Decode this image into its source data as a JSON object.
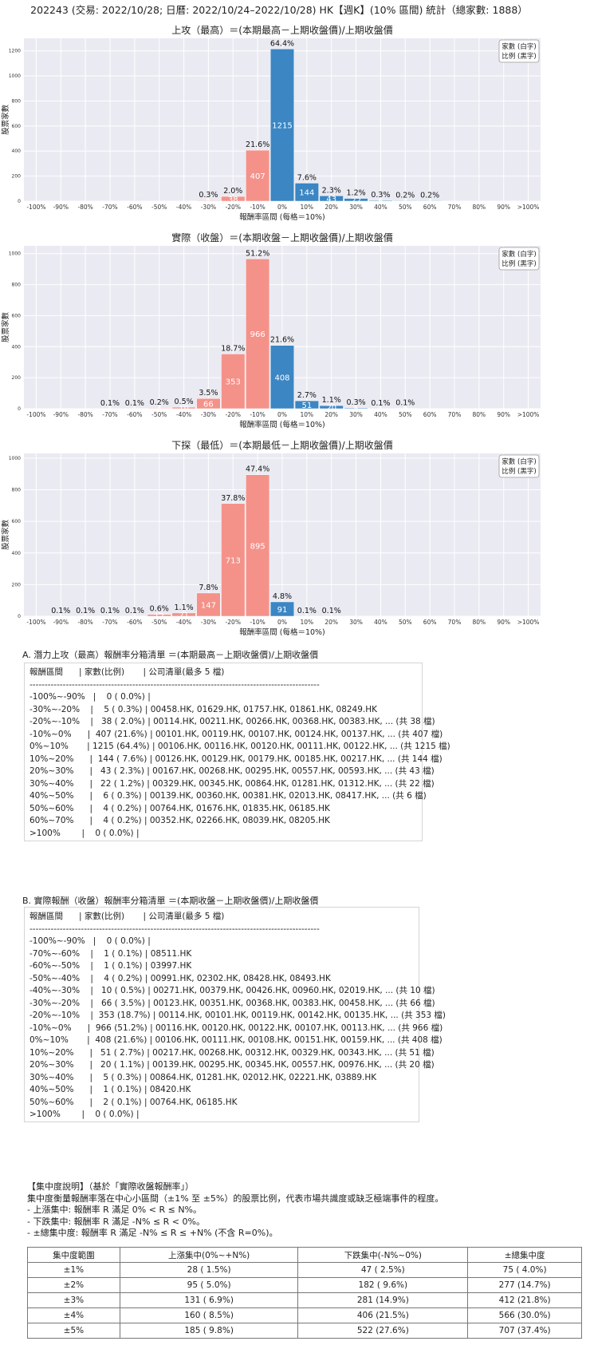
{
  "page_title": "202243 (交易: 2022/10/28; 日曆: 2022/10/24–2022/10/28) HK【週K】(10% 區間) 統計（總家數: 1888）",
  "chart_legend": [
    "家數 (白字)",
    "比例 (黑字)"
  ],
  "colors": {
    "negative": "#f4928a",
    "positive": "#3b86c3",
    "plot_bg": "#eaeaf2",
    "grid": "#ffffff"
  },
  "chart_data": [
    {
      "type": "bar",
      "title": "上攻（最高）＝(本期最高－上期收盤價)/上期收盤價",
      "xlabel": "報酬率區間 (每格＝10%)",
      "ylabel": "股票家數",
      "categories": [
        "-100%",
        "-90%",
        "-80%",
        "-70%",
        "-60%",
        "-50%",
        "-40%",
        "-30%",
        "-20%",
        "-10%",
        "0%",
        "10%",
        "20%",
        "30%",
        "40%",
        "50%",
        "60%",
        "70%",
        "80%",
        "90%",
        ">100%"
      ],
      "counts": [
        0,
        0,
        0,
        0,
        0,
        0,
        0,
        5,
        38,
        407,
        1215,
        144,
        43,
        22,
        6,
        4,
        4,
        0,
        0,
        0,
        0
      ],
      "percent_labels": [
        "",
        "",
        "",
        "",
        "",
        "",
        "",
        "0.3%",
        "2.0%",
        "21.6%",
        "64.4%",
        "7.6%",
        "2.3%",
        "1.2%",
        "0.3%",
        "0.2%",
        "0.2%",
        "",
        "",
        "",
        ""
      ],
      "ylim": [
        0,
        1300
      ],
      "yticks": [
        0,
        200,
        400,
        600,
        800,
        1000,
        1200
      ],
      "grid": true,
      "legend": "top-right"
    },
    {
      "type": "bar",
      "title": "實際（收盤）＝(本期收盤－上期收盤價)/上期收盤價",
      "xlabel": "報酬率區間 (每格＝10%)",
      "ylabel": "股票家數",
      "categories": [
        "-100%",
        "-90%",
        "-80%",
        "-70%",
        "-60%",
        "-50%",
        "-40%",
        "-30%",
        "-20%",
        "-10%",
        "0%",
        "10%",
        "20%",
        "30%",
        "40%",
        "50%",
        "60%",
        "70%",
        "80%",
        "90%",
        ">100%"
      ],
      "counts": [
        0,
        0,
        0,
        1,
        1,
        4,
        10,
        66,
        353,
        966,
        408,
        51,
        20,
        5,
        1,
        2,
        0,
        0,
        0,
        0,
        0
      ],
      "percent_labels": [
        "",
        "",
        "",
        "0.1%",
        "0.1%",
        "0.2%",
        "0.5%",
        "3.5%",
        "18.7%",
        "51.2%",
        "21.6%",
        "2.7%",
        "1.1%",
        "0.3%",
        "0.1%",
        "0.1%",
        "",
        "",
        "",
        "",
        ""
      ],
      "ylim": [
        0,
        1050
      ],
      "yticks": [
        0,
        200,
        400,
        600,
        800,
        1000
      ],
      "grid": true,
      "legend": "top-right"
    },
    {
      "type": "bar",
      "title": "下探（最低）＝(本期最低－上期收盤價)/上期收盤價",
      "xlabel": "報酬率區間 (每格＝10%)",
      "ylabel": "股票家數",
      "categories": [
        "-100%",
        "-90%",
        "-80%",
        "-70%",
        "-60%",
        "-50%",
        "-40%",
        "-30%",
        "-20%",
        "-10%",
        "0%",
        "10%",
        "20%",
        "30%",
        "40%",
        "50%",
        "60%",
        "70%",
        "80%",
        "90%",
        ">100%"
      ],
      "counts": [
        0,
        1,
        1,
        1,
        1,
        12,
        21,
        147,
        713,
        895,
        91,
        1,
        1,
        0,
        0,
        0,
        0,
        0,
        0,
        0,
        0
      ],
      "percent_labels": [
        "",
        "0.1%",
        "0.1%",
        "0.1%",
        "0.1%",
        "0.6%",
        "1.1%",
        "7.8%",
        "37.8%",
        "47.4%",
        "4.8%",
        "0.1%",
        "0.1%",
        "",
        "",
        "",
        "",
        "",
        "",
        "",
        ""
      ],
      "ylim": [
        0,
        1030
      ],
      "yticks": [
        0,
        200,
        400,
        600,
        800,
        1000
      ],
      "grid": true,
      "legend": "top-right"
    }
  ],
  "section_a": {
    "heading": "A. 潛力上攻（最高）報酬率分箱清單 ＝(本期最高－上期收盤價)/上期收盤價",
    "lines": [
      "報酬區間      | 家數(比例)       | 公司清單(最多 5 檔)",
      "------------------------------------------------------------------------------------------------",
      "-100%~-90%   |    0 ( 0.0%) |",
      "-30%~-20%    |    5 ( 0.3%) | 00458.HK, 01629.HK, 01757.HK, 01861.HK, 08249.HK",
      "-20%~-10%    |   38 ( 2.0%) | 00114.HK, 00211.HK, 00266.HK, 00368.HK, 00383.HK, ... (共 38 檔)",
      "-10%~0%      |  407 (21.6%) | 00101.HK, 00119.HK, 00107.HK, 00124.HK, 00137.HK, ... (共 407 檔)",
      "0%~10%       | 1215 (64.4%) | 00106.HK, 00116.HK, 00120.HK, 00111.HK, 00122.HK, ... (共 1215 檔)",
      "10%~20%      |  144 ( 7.6%) | 00126.HK, 00129.HK, 00179.HK, 00185.HK, 00217.HK, ... (共 144 檔)",
      "20%~30%      |   43 ( 2.3%) | 00167.HK, 00268.HK, 00295.HK, 00557.HK, 00593.HK, ... (共 43 檔)",
      "30%~40%      |   22 ( 1.2%) | 00329.HK, 00345.HK, 00864.HK, 01281.HK, 01312.HK, ... (共 22 檔)",
      "40%~50%      |    6 ( 0.3%) | 00139.HK, 00360.HK, 00381.HK, 02013.HK, 08417.HK, ... (共 6 檔)",
      "50%~60%      |    4 ( 0.2%) | 00764.HK, 01676.HK, 01835.HK, 06185.HK",
      "60%~70%      |    4 ( 0.2%) | 00352.HK, 02266.HK, 08039.HK, 08205.HK",
      ">100%        |    0 ( 0.0%) |"
    ]
  },
  "section_b": {
    "heading": "B. 實際報酬（收盤）報酬率分箱清單 ＝(本期收盤－上期收盤價)/上期收盤價",
    "lines": [
      "報酬區間      | 家數(比例)       | 公司清單(最多 5 檔)",
      "------------------------------------------------------------------------------------------------",
      "-100%~-90%   |    0 ( 0.0%) |",
      "-70%~-60%    |    1 ( 0.1%) | 08511.HK",
      "-60%~-50%    |    1 ( 0.1%) | 03997.HK",
      "-50%~-40%    |    4 ( 0.2%) | 00991.HK, 02302.HK, 08428.HK, 08493.HK",
      "-40%~-30%    |   10 ( 0.5%) | 00271.HK, 00379.HK, 00426.HK, 00960.HK, 02019.HK, ... (共 10 檔)",
      "-30%~-20%    |   66 ( 3.5%) | 00123.HK, 00351.HK, 00368.HK, 00383.HK, 00458.HK, ... (共 66 檔)",
      "-20%~-10%    |  353 (18.7%) | 00114.HK, 00101.HK, 00119.HK, 00142.HK, 00135.HK, ... (共 353 檔)",
      "-10%~0%      |  966 (51.2%) | 00116.HK, 00120.HK, 00122.HK, 00107.HK, 00113.HK, ... (共 966 檔)",
      "0%~10%       |  408 (21.6%) | 00106.HK, 00111.HK, 00108.HK, 00151.HK, 00159.HK, ... (共 408 檔)",
      "10%~20%      |   51 ( 2.7%) | 00217.HK, 00268.HK, 00312.HK, 00329.HK, 00343.HK, ... (共 51 檔)",
      "20%~30%      |   20 ( 1.1%) | 00139.HK, 00295.HK, 00345.HK, 00557.HK, 00976.HK, ... (共 20 檔)",
      "30%~40%      |    5 ( 0.3%) | 00864.HK, 01281.HK, 02012.HK, 02221.HK, 03889.HK",
      "40%~50%      |    1 ( 0.1%) | 08420.HK",
      "50%~60%      |    2 ( 0.1%) | 00764.HK, 06185.HK",
      ">100%        |    0 ( 0.0%) |"
    ]
  },
  "concentration": {
    "lines": [
      "【集中度說明】（基於「實際收盤報酬率」）",
      "集中度衡量報酬率落在中心小區間（±1% 至 ±5%）的股票比例，代表市場共識度或缺乏極端事件的程度。",
      " - 上漲集中: 報酬率 R 滿足 0% < R ≤ N%。",
      " - 下跌集中: 報酬率 R 滿足 -N% ≤ R < 0%。",
      " - ±總集中度: 報酬率 R 滿足 -N% ≤ R ≤ +N% (不含 R=0%)。"
    ],
    "headers": [
      "集中度範圍",
      "上漲集中(0%~+N%)",
      "下跌集中(-N%~0%)",
      "±總集中度"
    ],
    "rows": [
      [
        "±1%",
        "28 ( 1.5%)",
        "47 ( 2.5%)",
        "75 ( 4.0%)"
      ],
      [
        "±2%",
        "95 ( 5.0%)",
        "182 ( 9.6%)",
        "277 (14.7%)"
      ],
      [
        "±3%",
        "131 ( 6.9%)",
        "281 (14.9%)",
        "412 (21.8%)"
      ],
      [
        "±4%",
        "160 ( 8.5%)",
        "406 (21.5%)",
        "566 (30.0%)"
      ],
      [
        "±5%",
        "185 ( 9.8%)",
        "522 (27.6%)",
        "707 (37.4%)"
      ]
    ]
  }
}
